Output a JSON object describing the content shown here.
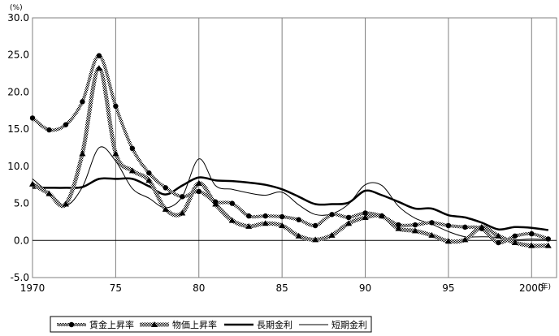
{
  "chart_data": {
    "type": "line",
    "y_unit": "(%)",
    "x_unit": "(年)",
    "ylim": [
      -5.0,
      30.0
    ],
    "xlim": [
      1970,
      2001.5
    ],
    "y_ticks": [
      "30.0",
      "25.0",
      "20.0",
      "15.0",
      "10.0",
      "5.0",
      "0.0",
      "-5.0"
    ],
    "x_ticks": [
      {
        "x": 1970,
        "label": "1970"
      },
      {
        "x": 1975,
        "label": "75"
      },
      {
        "x": 1980,
        "label": "80"
      },
      {
        "x": 1985,
        "label": "85"
      },
      {
        "x": 1990,
        "label": "90"
      },
      {
        "x": 1995,
        "label": "95"
      },
      {
        "x": 2000,
        "label": "2000"
      }
    ],
    "grid": "vertical",
    "legend_position": "bottom",
    "series": [
      {
        "name": "賃金上昇率",
        "style": "dotted-circle",
        "x": [
          1970,
          1971,
          1972,
          1973,
          1974,
          1975,
          1976,
          1977,
          1978,
          1979,
          1980,
          1981,
          1982,
          1983,
          1984,
          1985,
          1986,
          1987,
          1988,
          1989,
          1990,
          1991,
          1992,
          1993,
          1994,
          1995,
          1996,
          1997,
          1998,
          1999,
          2000,
          2001
        ],
        "values": [
          16.5,
          14.9,
          15.6,
          18.7,
          24.9,
          18.1,
          12.4,
          9.1,
          7.1,
          5.9,
          6.6,
          5.2,
          5.0,
          3.3,
          3.3,
          3.2,
          2.8,
          2.0,
          3.5,
          3.1,
          3.7,
          3.3,
          2.1,
          2.1,
          2.4,
          2.0,
          1.8,
          1.6,
          -0.3,
          0.6,
          0.9,
          0.2
        ]
      },
      {
        "name": "物価上昇率",
        "style": "triangle",
        "x": [
          1970,
          1971,
          1972,
          1973,
          1974,
          1975,
          1976,
          1977,
          1978,
          1979,
          1980,
          1981,
          1982,
          1983,
          1984,
          1985,
          1986,
          1987,
          1988,
          1989,
          1990,
          1991,
          1992,
          1993,
          1994,
          1995,
          1996,
          1997,
          1998,
          1999,
          2000,
          2001
        ],
        "values": [
          7.6,
          6.3,
          4.9,
          11.7,
          23.2,
          11.7,
          9.4,
          8.1,
          4.2,
          3.7,
          7.7,
          4.9,
          2.7,
          1.9,
          2.3,
          2.0,
          0.6,
          0.1,
          0.7,
          2.3,
          3.1,
          3.3,
          1.6,
          1.3,
          0.7,
          -0.1,
          0.1,
          1.8,
          0.6,
          -0.3,
          -0.7,
          -0.7
        ]
      },
      {
        "name": "長期金利",
        "style": "thick",
        "x": [
          1970,
          1971,
          1972,
          1973,
          1974,
          1975,
          1976,
          1977,
          1978,
          1979,
          1980,
          1981,
          1982,
          1983,
          1984,
          1985,
          1986,
          1987,
          1988,
          1989,
          1990,
          1991,
          1992,
          1993,
          1994,
          1995,
          1996,
          1997,
          1998,
          1999,
          2000,
          2001
        ],
        "values": [
          7.1,
          7.1,
          7.1,
          7.2,
          8.3,
          8.3,
          8.3,
          7.3,
          6.2,
          7.4,
          8.5,
          8.1,
          8.0,
          7.8,
          7.5,
          6.9,
          5.9,
          4.9,
          4.9,
          5.1,
          6.7,
          6.1,
          5.2,
          4.3,
          4.3,
          3.4,
          3.1,
          2.4,
          1.5,
          1.8,
          1.7,
          1.4
        ]
      },
      {
        "name": "短期金利",
        "style": "thin",
        "x": [
          1970,
          1971,
          1972,
          1973,
          1974,
          1975,
          1976,
          1977,
          1978,
          1979,
          1980,
          1981,
          1982,
          1983,
          1984,
          1985,
          1986,
          1987,
          1988,
          1989,
          1990,
          1991,
          1992,
          1993,
          1994,
          1995,
          1996,
          1997,
          1998,
          1999,
          2000,
          2001
        ],
        "values": [
          8.3,
          6.4,
          4.7,
          7.2,
          12.5,
          10.7,
          7.0,
          5.7,
          4.4,
          5.9,
          11.0,
          7.4,
          6.9,
          6.4,
          6.1,
          6.5,
          4.8,
          3.5,
          3.6,
          4.9,
          7.5,
          7.4,
          4.6,
          3.0,
          2.2,
          1.2,
          0.5,
          0.5,
          0.4,
          0.1,
          0.2,
          0.1
        ]
      }
    ]
  }
}
